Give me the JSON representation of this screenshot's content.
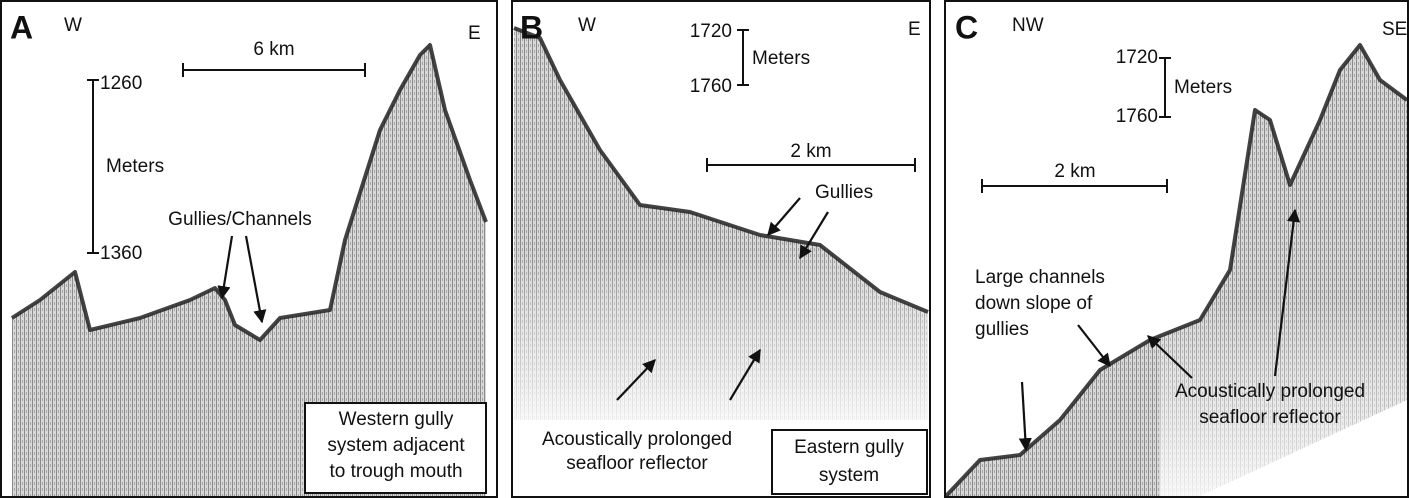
{
  "panels": [
    {
      "label": "A",
      "left": "W",
      "right": "E",
      "scale_h": "6 km",
      "depth_top": "1260",
      "depth_unit": "Meters",
      "depth_bottom": "1360",
      "callout": "Gullies/Channels",
      "box_lines": [
        "Western gully",
        "system adjacent",
        "to trough mouth"
      ]
    },
    {
      "label": "B",
      "left": "W",
      "right": "E",
      "scale_h": "2 km",
      "depth_top": "1720",
      "depth_unit": "Meters",
      "depth_bottom": "1760",
      "callout": "Gullies",
      "note_lines": [
        "Acoustically prolonged",
        "seafloor reflector"
      ],
      "box_lines": [
        "Eastern gully",
        "system"
      ]
    },
    {
      "label": "C",
      "left": "NW",
      "right": "SE",
      "scale_h": "2 km",
      "depth_top": "1720",
      "depth_unit": "Meters",
      "depth_bottom": "1760",
      "callout_lines": [
        "Large channels",
        "down slope of",
        "gullies"
      ],
      "note_lines": [
        "Acoustically prolonged",
        "seafloor reflector"
      ]
    }
  ]
}
